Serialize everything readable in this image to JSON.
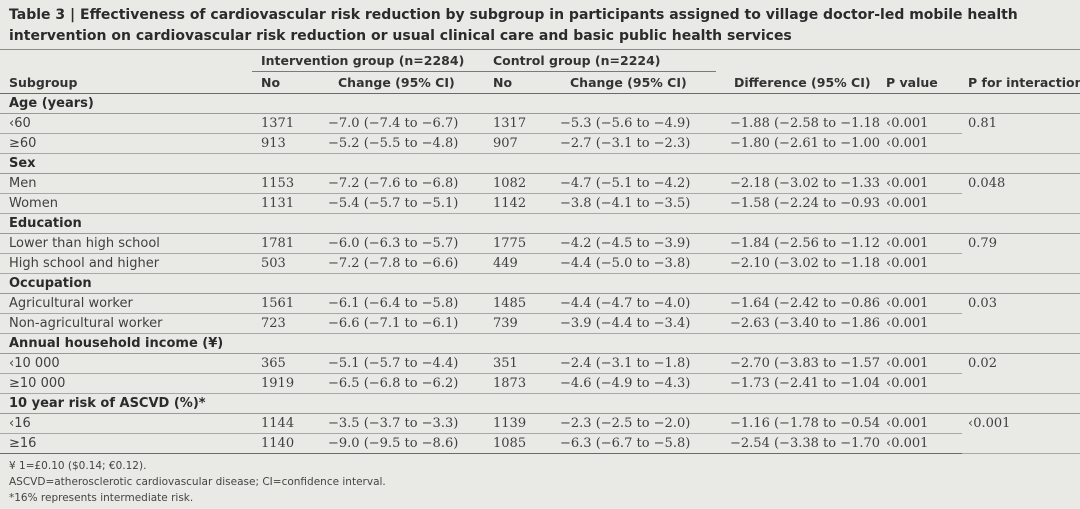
{
  "caption": {
    "label": "Table 3 |",
    "text": "Effectiveness of cardiovascular risk reduction by subgroup in participants assigned to village doctor-led mobile health intervention on cardiovascular risk reduction or usual clinical care and basic public health services"
  },
  "header": {
    "intervention_group": "Intervention group (n=2284)",
    "control_group": "Control group (n=2224)",
    "subgroup": "Subgroup",
    "no_1": "No",
    "change_1": "Change (95% CI)",
    "no_2": "No",
    "change_2": "Change (95% CI)",
    "difference": "Difference (95% CI)",
    "p_value": "P value",
    "p_interaction": "P for interaction"
  },
  "sections": [
    {
      "title": "Age (years)",
      "p_interaction": "0.81",
      "rows": [
        {
          "subgroup": "‹60",
          "n1": "1371",
          "c1": "−7.0 (−7.4 to −6.7)",
          "n2": "1317",
          "c2": "−5.3 (−5.6 to −4.9)",
          "diff": "−1.88 (−2.58 to −1.18)",
          "p": "‹0.001"
        },
        {
          "subgroup": "≥60",
          "n1": "913",
          "c1": "−5.2 (−5.5 to −4.8)",
          "n2": "907",
          "c2": "−2.7 (−3.1 to −2.3)",
          "diff": "−1.80 (−2.61 to −1.00)",
          "p": "‹0.001"
        }
      ]
    },
    {
      "title": "Sex",
      "p_interaction": "0.048",
      "rows": [
        {
          "subgroup": "Men",
          "n1": "1153",
          "c1": "−7.2 (−7.6 to −6.8)",
          "n2": "1082",
          "c2": "−4.7 (−5.1 to −4.2)",
          "diff": "−2.18 (−3.02 to −1.33)",
          "p": "‹0.001"
        },
        {
          "subgroup": "Women",
          "n1": "1131",
          "c1": "−5.4 (−5.7 to −5.1)",
          "n2": "1142",
          "c2": "−3.8 (−4.1 to −3.5)",
          "diff": "−1.58 (−2.24 to −0.93)",
          "p": "‹0.001"
        }
      ]
    },
    {
      "title": "Education",
      "p_interaction": "0.79",
      "rows": [
        {
          "subgroup": "Lower than high school",
          "n1": "1781",
          "c1": "−6.0 (−6.3 to −5.7)",
          "n2": "1775",
          "c2": "−4.2 (−4.5 to −3.9)",
          "diff": "−1.84 (−2.56 to −1.12)",
          "p": "‹0.001"
        },
        {
          "subgroup": "High school and higher",
          "n1": "503",
          "c1": "−7.2 (−7.8 to −6.6)",
          "n2": "449",
          "c2": "−4.4 (−5.0 to −3.8)",
          "diff": "−2.10 (−3.02 to −1.18)",
          "p": "‹0.001"
        }
      ]
    },
    {
      "title": "Occupation",
      "p_interaction": "0.03",
      "rows": [
        {
          "subgroup": "Agricultural worker",
          "n1": "1561",
          "c1": "−6.1 (−6.4 to −5.8)",
          "n2": "1485",
          "c2": "−4.4 (−4.7 to −4.0)",
          "diff": "−1.64 (−2.42 to −0.86)",
          "p": "‹0.001"
        },
        {
          "subgroup": "Non-agricultural worker",
          "n1": "723",
          "c1": "−6.6 (−7.1 to −6.1)",
          "n2": "739",
          "c2": "−3.9 (−4.4 to −3.4)",
          "diff": "−2.63 (−3.40 to −1.86)",
          "p": "‹0.001"
        }
      ]
    },
    {
      "title": "Annual household income (¥)",
      "p_interaction": "0.02",
      "rows": [
        {
          "subgroup": "‹10 000",
          "n1": "365",
          "c1": "−5.1 (−5.7 to −4.4)",
          "n2": "351",
          "c2": "−2.4 (−3.1 to −1.8)",
          "diff": "−2.70 (−3.83 to −1.57)",
          "p": "‹0.001"
        },
        {
          "subgroup": "≥10 000",
          "n1": "1919",
          "c1": "−6.5 (−6.8 to −6.2)",
          "n2": "1873",
          "c2": "−4.6 (−4.9 to −4.3)",
          "diff": "−1.73 (−2.41 to −1.04)",
          "p": "‹0.001"
        }
      ]
    },
    {
      "title": "10 year risk of ASCVD (%)*",
      "p_interaction": "‹0.001",
      "rows": [
        {
          "subgroup": "‹16",
          "n1": "1144",
          "c1": "−3.5 (−3.7 to −3.3)",
          "n2": "1139",
          "c2": "−2.3 (−2.5 to −2.0)",
          "diff": "−1.16 (−1.78 to −0.54)",
          "p": "‹0.001"
        },
        {
          "subgroup": "≥16",
          "n1": "1140",
          "c1": "−9.0 (−9.5 to −8.6)",
          "n2": "1085",
          "c2": "−6.3 (−6.7 to −5.8)",
          "diff": "−2.54 (−3.38 to −1.70)",
          "p": "‹0.001"
        }
      ]
    }
  ],
  "footnotes": [
    "¥ 1=£0.10 ($0.14; €0.12).",
    "ASCVD=atherosclerotic cardiovascular disease; CI=confidence interval.",
    "*16% represents intermediate risk."
  ]
}
